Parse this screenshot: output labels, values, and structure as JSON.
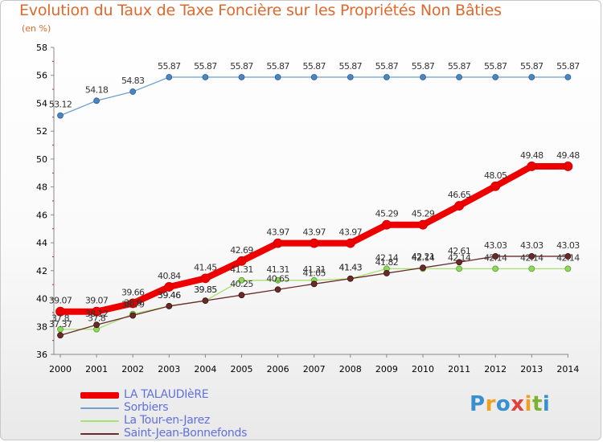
{
  "header": {
    "title": "Evolution du Taux de Taxe Foncière sur les Propriétés Non Bâties",
    "unit": "(en %)"
  },
  "logo": {
    "text": "Proxiti",
    "colors": [
      "#3a8fd0",
      "#f0a020",
      "#3a8fd0",
      "#e04040",
      "#f0a020",
      "#80b030",
      "#3a8fd0"
    ]
  },
  "colors": {
    "LA TALAUDIèRE": "#ee0000",
    "Sorbiers": "#6fa0d0",
    "La Tour-en-Jarez": "#a6e070",
    "Saint-Jean-Bonnefonds": "#6b2a2a"
  },
  "chart_data": {
    "type": "line",
    "title": "Evolution du Taux de Taxe Foncière sur les Propriétés Non Bâties",
    "ylabel": "(en %)",
    "xlabel": "",
    "x": [
      "2000",
      "2001",
      "2002",
      "2003",
      "2004",
      "2005",
      "2006",
      "2007",
      "2008",
      "2009",
      "2010",
      "2011",
      "2012",
      "2013",
      "2014"
    ],
    "ylim": [
      36,
      58
    ],
    "yticks": [
      36,
      38,
      40,
      42,
      44,
      46,
      48,
      50,
      52,
      54,
      56,
      58
    ],
    "grid": false,
    "legend_position": "bottom-left",
    "series": [
      {
        "name": "LA TALAUDIèRE",
        "values": [
          39.07,
          39.07,
          39.66,
          40.84,
          41.45,
          42.69,
          43.97,
          43.97,
          43.97,
          45.29,
          45.29,
          46.65,
          48.05,
          49.48,
          49.48
        ],
        "labels": [
          "39.07",
          "39.07",
          "39.66",
          "40.84",
          "41.45",
          "42.69",
          "43.97",
          "43.97",
          "43.97",
          "45.29",
          "45.29",
          "46.65",
          "48.05",
          "49.48",
          "49.48"
        ]
      },
      {
        "name": "Sorbiers",
        "values": [
          53.12,
          54.18,
          54.83,
          55.87,
          55.87,
          55.87,
          55.87,
          55.87,
          55.87,
          55.87,
          55.87,
          55.87,
          55.87,
          55.87,
          55.87
        ],
        "labels": [
          "53.12",
          "54.18",
          "54.83",
          "55.87",
          "55.87",
          "55.87",
          "55.87",
          "55.87",
          "55.87",
          "55.87",
          "55.87",
          "55.87",
          "55.87",
          "55.87",
          "55.87"
        ]
      },
      {
        "name": "La Tour-en-Jarez",
        "values": [
          37.8,
          37.8,
          38.9,
          39.46,
          39.85,
          41.31,
          41.31,
          41.31,
          41.43,
          42.14,
          42.14,
          42.14,
          42.14,
          42.14,
          42.14
        ],
        "labels": [
          "37.8",
          "37.8",
          "38.9",
          "39.46",
          "39.85",
          "41.31",
          "41.31",
          "41.31",
          "41.43",
          "42.14",
          "42.14",
          "42.14",
          "42.14",
          "42.14",
          "42.14"
        ]
      },
      {
        "name": "Saint-Jean-Bonnefonds",
        "values": [
          37.37,
          38.12,
          38.79,
          39.46,
          39.85,
          40.25,
          40.65,
          41.05,
          41.43,
          41.82,
          42.21,
          42.61,
          43.03,
          43.03,
          43.03
        ],
        "labels": [
          "37.37",
          "38.12",
          "38.79",
          "39.46",
          "39.85",
          "40.25",
          "40.65",
          "41.05",
          "41.43",
          "41.82",
          "42.21",
          "42.61",
          "43.03",
          "43.03",
          "43.03"
        ]
      }
    ]
  }
}
